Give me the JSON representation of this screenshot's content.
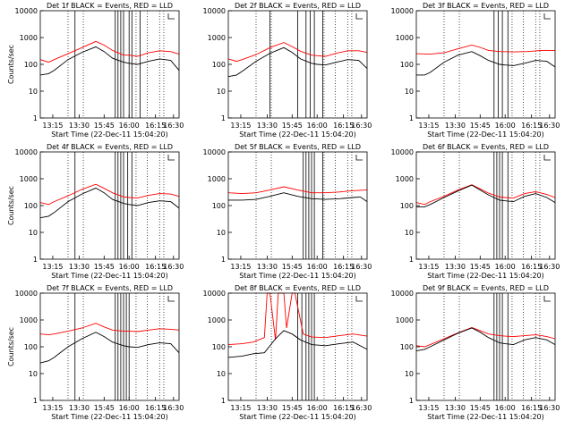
{
  "window": {
    "background": "#ffffff"
  },
  "colors": {
    "black_series": "#000000",
    "red_series": "#ff0000",
    "axes": "#000000"
  },
  "chart_data": [
    {
      "type": "line",
      "title": "Det 1f BLACK = Events, RED = LLD",
      "xlabel": "",
      "ylabel": "Counts/sec",
      "ylog": true,
      "ylim": [
        1,
        10000
      ],
      "xticks": [
        "13:15",
        "13:30",
        "15:45",
        "16:00",
        "16:15",
        "16:30"
      ],
      "series": [
        {
          "color": "#ff0000",
          "x": [
            0,
            6,
            10,
            20,
            30,
            40,
            46,
            52,
            60,
            64,
            70,
            78,
            86,
            94,
            100
          ],
          "y": [
            150,
            120,
            150,
            250,
            420,
            720,
            520,
            330,
            220,
            220,
            200,
            270,
            320,
            300,
            240
          ]
        },
        {
          "color": "#000000",
          "x": [
            0,
            6,
            10,
            20,
            30,
            40,
            46,
            52,
            60,
            64,
            70,
            78,
            86,
            94,
            100
          ],
          "y": [
            40,
            45,
            60,
            150,
            280,
            450,
            300,
            170,
            120,
            110,
            100,
            130,
            160,
            140,
            60
          ]
        }
      ]
    },
    {
      "type": "line",
      "title": "Det 2f BLACK = Events, RED = LLD",
      "xlabel": "",
      "ylabel": "",
      "ylog": true,
      "ylim": [
        1,
        10000
      ],
      "xticks": [
        "13:15",
        "13:30",
        "15:45",
        "16:00",
        "16:15",
        "16:30"
      ],
      "series": [
        {
          "color": "#ff0000",
          "x": [
            0,
            6,
            10,
            20,
            30,
            40,
            46,
            52,
            60,
            64,
            70,
            78,
            86,
            94,
            100
          ],
          "y": [
            160,
            130,
            150,
            230,
            420,
            650,
            460,
            310,
            220,
            210,
            200,
            260,
            320,
            320,
            280
          ]
        },
        {
          "color": "#000000",
          "x": [
            0,
            6,
            10,
            20,
            30,
            40,
            46,
            52,
            60,
            64,
            70,
            78,
            86,
            94,
            100
          ],
          "y": [
            35,
            40,
            55,
            130,
            260,
            420,
            280,
            160,
            110,
            100,
            95,
            120,
            150,
            140,
            70
          ]
        }
      ]
    },
    {
      "type": "line",
      "title": "Det 3f BLACK = Events, RED = LLD",
      "xlabel": "",
      "ylabel": "",
      "ylog": true,
      "ylim": [
        1,
        10000
      ],
      "xticks": [
        "13:15",
        "13:30",
        "15:45",
        "16:00",
        "16:15",
        "16:30"
      ],
      "series": [
        {
          "color": "#ff0000",
          "x": [
            0,
            10,
            20,
            30,
            40,
            46,
            52,
            60,
            70,
            80,
            90,
            100
          ],
          "y": [
            250,
            240,
            270,
            380,
            520,
            430,
            330,
            300,
            290,
            300,
            330,
            330
          ]
        },
        {
          "color": "#000000",
          "x": [
            0,
            6,
            10,
            20,
            30,
            40,
            46,
            52,
            60,
            64,
            70,
            78,
            86,
            94,
            100
          ],
          "y": [
            40,
            40,
            50,
            120,
            220,
            300,
            210,
            140,
            100,
            95,
            90,
            110,
            140,
            130,
            80
          ]
        }
      ]
    },
    {
      "type": "line",
      "title": "Det 4f BLACK = Events, RED = LLD",
      "xlabel": "",
      "ylabel": "Counts/sec",
      "ylog": true,
      "ylim": [
        1,
        10000
      ],
      "xticks": [
        "13:15",
        "13:30",
        "15:45",
        "16:00",
        "16:15",
        "16:30"
      ],
      "series": [
        {
          "color": "#ff0000",
          "x": [
            0,
            6,
            10,
            20,
            30,
            40,
            46,
            52,
            60,
            64,
            70,
            78,
            86,
            94,
            100
          ],
          "y": [
            130,
            110,
            140,
            230,
            400,
            620,
            440,
            300,
            210,
            200,
            190,
            240,
            280,
            270,
            220
          ]
        },
        {
          "color": "#000000",
          "x": [
            0,
            6,
            10,
            20,
            30,
            40,
            46,
            52,
            60,
            64,
            70,
            78,
            86,
            94,
            100
          ],
          "y": [
            35,
            40,
            55,
            140,
            270,
            450,
            300,
            170,
            120,
            110,
            100,
            130,
            150,
            140,
            80
          ]
        }
      ]
    },
    {
      "type": "line",
      "title": "Det 5f BLACK = Events, RED = LLD",
      "xlabel": "",
      "ylabel": "",
      "ylog": true,
      "ylim": [
        1,
        10000
      ],
      "xticks": [
        "13:15",
        "13:30",
        "15:45",
        "16:00",
        "16:15",
        "16:30"
      ],
      "series": [
        {
          "color": "#ff0000",
          "x": [
            0,
            10,
            20,
            30,
            40,
            50,
            60,
            70,
            80,
            90,
            100
          ],
          "y": [
            300,
            280,
            300,
            380,
            500,
            380,
            300,
            300,
            320,
            360,
            380
          ]
        },
        {
          "color": "#000000",
          "x": [
            0,
            10,
            20,
            30,
            40,
            50,
            60,
            70,
            80,
            90,
            95,
            100
          ],
          "y": [
            160,
            160,
            170,
            220,
            300,
            220,
            180,
            170,
            180,
            200,
            210,
            140
          ]
        }
      ]
    },
    {
      "type": "line",
      "title": "Det 6f BLACK = Events, RED = LLD",
      "xlabel": "",
      "ylabel": "",
      "ylog": true,
      "ylim": [
        1,
        10000
      ],
      "xticks": [
        "13:15",
        "13:30",
        "15:45",
        "16:00",
        "16:15",
        "16:30"
      ],
      "series": [
        {
          "color": "#ff0000",
          "x": [
            0,
            6,
            10,
            20,
            30,
            40,
            46,
            52,
            60,
            64,
            70,
            78,
            86,
            94,
            100
          ],
          "y": [
            130,
            110,
            140,
            220,
            380,
            600,
            420,
            290,
            210,
            200,
            190,
            280,
            330,
            260,
            200
          ]
        },
        {
          "color": "#000000",
          "x": [
            0,
            6,
            10,
            20,
            30,
            40,
            46,
            52,
            60,
            64,
            70,
            78,
            86,
            94,
            100
          ],
          "y": [
            90,
            90,
            110,
            200,
            350,
            580,
            380,
            250,
            160,
            150,
            140,
            220,
            280,
            200,
            130
          ]
        }
      ]
    },
    {
      "type": "line",
      "title": "Det 7f BLACK = Events, RED = LLD",
      "xlabel": "",
      "ylabel": "Counts/sec",
      "ylog": true,
      "ylim": [
        1,
        10000
      ],
      "xticks": [
        "13:15",
        "13:30",
        "15:45",
        "16:00",
        "16:15",
        "16:30"
      ],
      "series": [
        {
          "color": "#ff0000",
          "x": [
            0,
            6,
            10,
            20,
            30,
            40,
            46,
            52,
            60,
            64,
            70,
            78,
            86,
            94,
            100
          ],
          "y": [
            300,
            280,
            300,
            380,
            500,
            750,
            550,
            420,
            380,
            380,
            370,
            420,
            470,
            450,
            420
          ]
        },
        {
          "color": "#000000",
          "x": [
            0,
            6,
            10,
            20,
            30,
            40,
            46,
            52,
            60,
            64,
            70,
            78,
            86,
            94,
            100
          ],
          "y": [
            25,
            30,
            40,
            100,
            200,
            350,
            240,
            150,
            110,
            100,
            95,
            120,
            140,
            130,
            60
          ]
        }
      ]
    },
    {
      "type": "line",
      "title": "Det 8f BLACK = Events, RED = LLD",
      "xlabel": "",
      "ylabel": "",
      "ylog": true,
      "ylim": [
        1,
        10000
      ],
      "xticks": [
        "13:15",
        "13:30",
        "15:45",
        "16:00",
        "16:15",
        "16:30"
      ],
      "series": [
        {
          "color": "#ff0000",
          "x": [
            0,
            10,
            18,
            26,
            28,
            30,
            34,
            36,
            40,
            42,
            46,
            48,
            54,
            60,
            70,
            80,
            90,
            100
          ],
          "y": [
            120,
            130,
            150,
            220,
            10000,
            10000,
            180,
            10000,
            10000,
            500,
            10000,
            10000,
            300,
            230,
            220,
            260,
            300,
            250
          ]
        },
        {
          "color": "#000000",
          "x": [
            0,
            10,
            18,
            26,
            34,
            40,
            46,
            52,
            60,
            70,
            80,
            90,
            100
          ],
          "y": [
            40,
            45,
            55,
            60,
            200,
            400,
            300,
            180,
            120,
            110,
            130,
            150,
            80
          ]
        }
      ]
    },
    {
      "type": "line",
      "title": "Det 9f BLACK = Events, RED = LLD",
      "xlabel": "",
      "ylabel": "",
      "ylog": true,
      "ylim": [
        1,
        10000
      ],
      "xticks": [
        "13:15",
        "13:30",
        "15:45",
        "16:00",
        "16:15",
        "16:30"
      ],
      "series": [
        {
          "color": "#ff0000",
          "x": [
            0,
            6,
            10,
            20,
            30,
            40,
            46,
            52,
            60,
            64,
            70,
            78,
            86,
            94,
            100
          ],
          "y": [
            110,
            100,
            120,
            200,
            330,
            520,
            400,
            300,
            260,
            250,
            240,
            260,
            280,
            240,
            200
          ]
        },
        {
          "color": "#000000",
          "x": [
            0,
            6,
            10,
            20,
            30,
            40,
            46,
            52,
            60,
            64,
            70,
            78,
            86,
            94,
            100
          ],
          "y": [
            70,
            80,
            100,
            180,
            320,
            500,
            350,
            220,
            140,
            130,
            120,
            180,
            220,
            180,
            120
          ]
        }
      ]
    }
  ],
  "y_tick_labels": [
    "1",
    "10",
    "100",
    "1000",
    "10000"
  ],
  "x_axis_label": "Start Time (22-Dec-11 15:04:20)"
}
